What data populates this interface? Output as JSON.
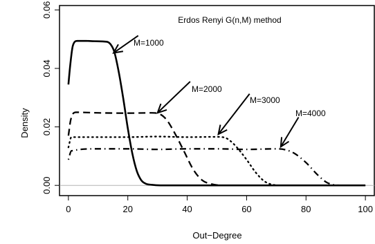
{
  "chart_data": {
    "type": "line",
    "title": "Erdos Renyi G(n,M) method",
    "xlabel": "Out−Degree",
    "ylabel": "Density",
    "xlim": [
      -3,
      103
    ],
    "ylim": [
      -0.0035,
      0.0615
    ],
    "xticks": [
      0,
      20,
      40,
      60,
      80,
      100
    ],
    "xtick_labels": [
      "0",
      "20",
      "40",
      "60",
      "80",
      "100"
    ],
    "yticks": [
      0.0,
      0.02,
      0.04,
      0.06
    ],
    "ytick_labels": [
      "0.00",
      "0.02",
      "0.04",
      "0.06"
    ],
    "reference_line_y": 0,
    "grid": false,
    "legend": "none",
    "series": [
      {
        "name": "M=1000",
        "line_style": "solid",
        "points": [
          [
            0,
            0.0345
          ],
          [
            0.6,
            0.041
          ],
          [
            1.5,
            0.0478
          ],
          [
            3,
            0.0494
          ],
          [
            6,
            0.0494
          ],
          [
            9,
            0.0493
          ],
          [
            13,
            0.0491
          ],
          [
            14.5,
            0.0478
          ],
          [
            15.5,
            0.0455
          ],
          [
            17,
            0.0385
          ],
          [
            18.5,
            0.0295
          ],
          [
            20,
            0.0195
          ],
          [
            21.5,
            0.011
          ],
          [
            23,
            0.005
          ],
          [
            24.5,
            0.0018
          ],
          [
            26,
            0.0006
          ],
          [
            28,
            0.0002
          ],
          [
            31,
            0.0
          ],
          [
            100,
            0.0
          ]
        ]
      },
      {
        "name": "M=2000",
        "line_style": "dashed",
        "points": [
          [
            0,
            0.017
          ],
          [
            0.8,
            0.0225
          ],
          [
            2.5,
            0.025
          ],
          [
            10,
            0.0248
          ],
          [
            20,
            0.0247
          ],
          [
            28,
            0.0248
          ],
          [
            30.5,
            0.0245
          ],
          [
            33,
            0.0225
          ],
          [
            36,
            0.0175
          ],
          [
            39,
            0.0115
          ],
          [
            42,
            0.0055
          ],
          [
            45,
            0.0018
          ],
          [
            48,
            0.0005
          ],
          [
            52,
            0.0
          ],
          [
            100,
            0.0
          ]
        ]
      },
      {
        "name": "M=3000",
        "line_style": "dotted",
        "points": [
          [
            0,
            0.013
          ],
          [
            1,
            0.0165
          ],
          [
            10,
            0.0165
          ],
          [
            20,
            0.0165
          ],
          [
            30,
            0.0167
          ],
          [
            40,
            0.0165
          ],
          [
            50,
            0.0166
          ],
          [
            53,
            0.0162
          ],
          [
            56,
            0.0138
          ],
          [
            60,
            0.0088
          ],
          [
            63,
            0.0045
          ],
          [
            66,
            0.0014
          ],
          [
            69,
            0.0002
          ],
          [
            72,
            0.0
          ],
          [
            100,
            0.0
          ]
        ]
      },
      {
        "name": "M=4000",
        "line_style": "dotdash",
        "points": [
          [
            0,
            0.0088
          ],
          [
            1,
            0.0118
          ],
          [
            10,
            0.0125
          ],
          [
            20,
            0.0125
          ],
          [
            30,
            0.0123
          ],
          [
            40,
            0.0125
          ],
          [
            50,
            0.0125
          ],
          [
            60,
            0.0123
          ],
          [
            70,
            0.0125
          ],
          [
            73,
            0.0122
          ],
          [
            76,
            0.011
          ],
          [
            80,
            0.0078
          ],
          [
            84,
            0.0035
          ],
          [
            87,
            0.001
          ],
          [
            90,
            0.0001
          ],
          [
            93,
            0.0
          ],
          [
            100,
            0.0
          ]
        ]
      }
    ],
    "annotations": [
      {
        "text": "M=1000",
        "arrow_from": [
          23.5,
          0.0512
        ],
        "arrow_to": [
          15.2,
          0.0453
        ]
      },
      {
        "text": "M=2000",
        "arrow_from": [
          41,
          0.0355
        ],
        "arrow_to": [
          30,
          0.0248
        ]
      },
      {
        "text": "M=3000",
        "arrow_from": [
          61,
          0.0313
        ],
        "arrow_to": [
          50.5,
          0.0175
        ]
      },
      {
        "text": "M=4000",
        "arrow_from": [
          77.5,
          0.0233
        ],
        "arrow_to": [
          71.5,
          0.0132
        ]
      }
    ]
  }
}
